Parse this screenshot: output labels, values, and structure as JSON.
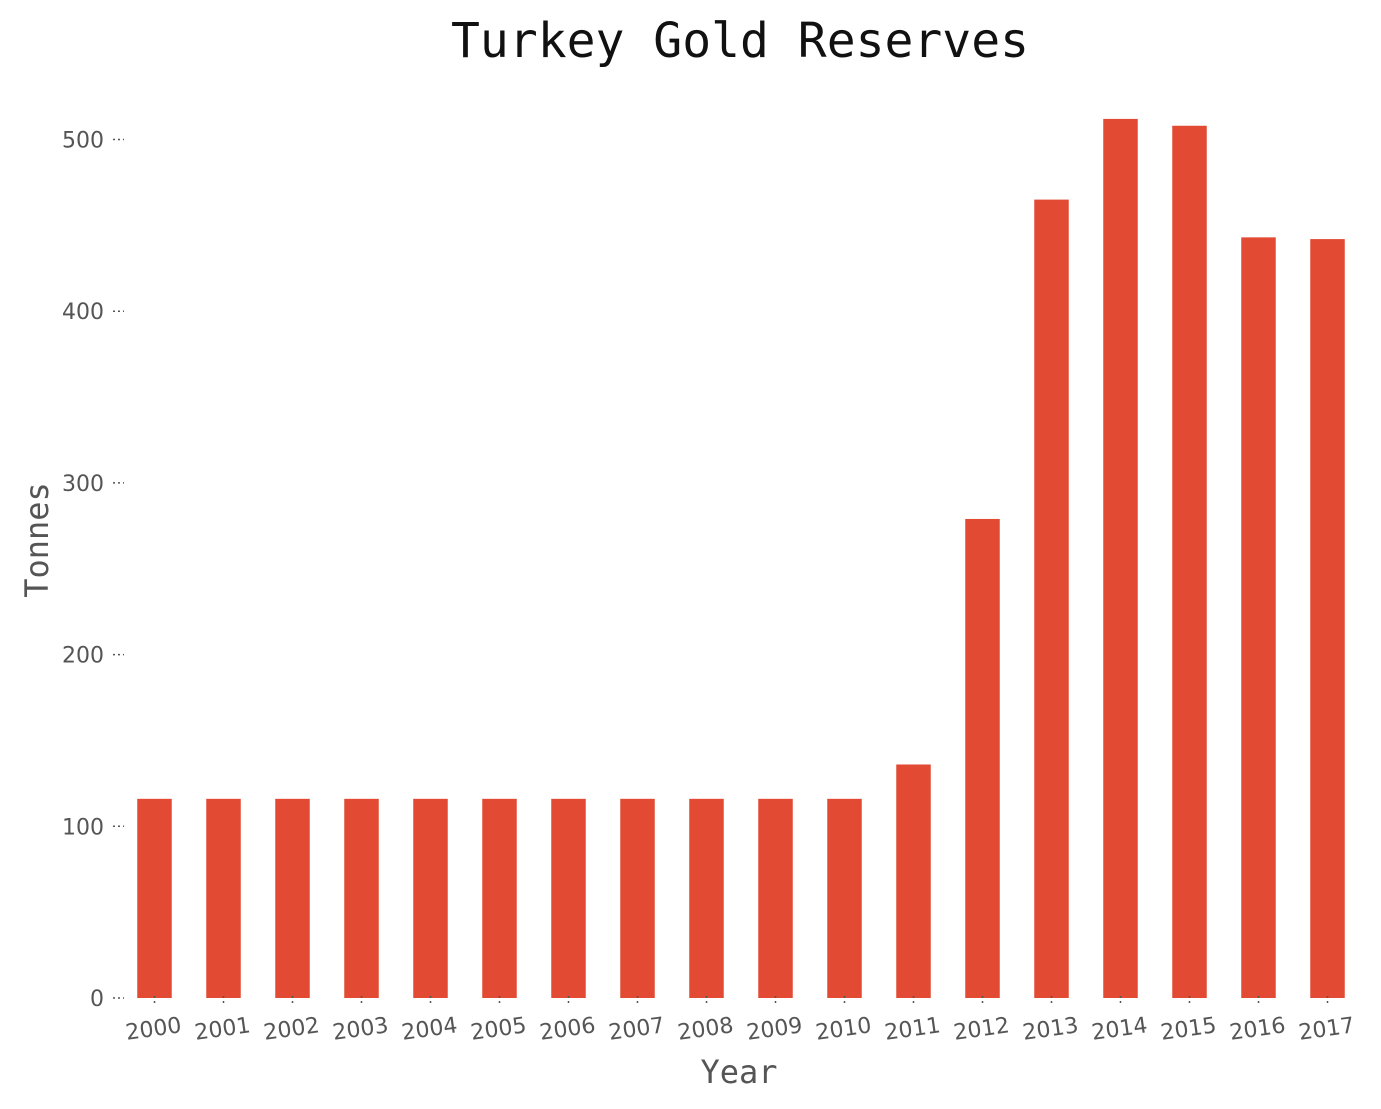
{
  "chart_data": {
    "type": "bar",
    "title": "Turkey Gold Reserves",
    "xlabel": "Year",
    "ylabel": "Tonnes",
    "categories": [
      "2000",
      "2001",
      "2002",
      "2003",
      "2004",
      "2005",
      "2006",
      "2007",
      "2008",
      "2009",
      "2010",
      "2011",
      "2012",
      "2013",
      "2014",
      "2015",
      "2016",
      "2017"
    ],
    "values": [
      116,
      116,
      116,
      116,
      116,
      116,
      116,
      116,
      116,
      116,
      116,
      136,
      279,
      465,
      512,
      508,
      443,
      442
    ],
    "yticks": [
      0,
      100,
      200,
      300,
      400,
      500
    ],
    "ylim": [
      0,
      525
    ],
    "grid": false,
    "legend": "none",
    "bar_color": "#E24A33"
  }
}
